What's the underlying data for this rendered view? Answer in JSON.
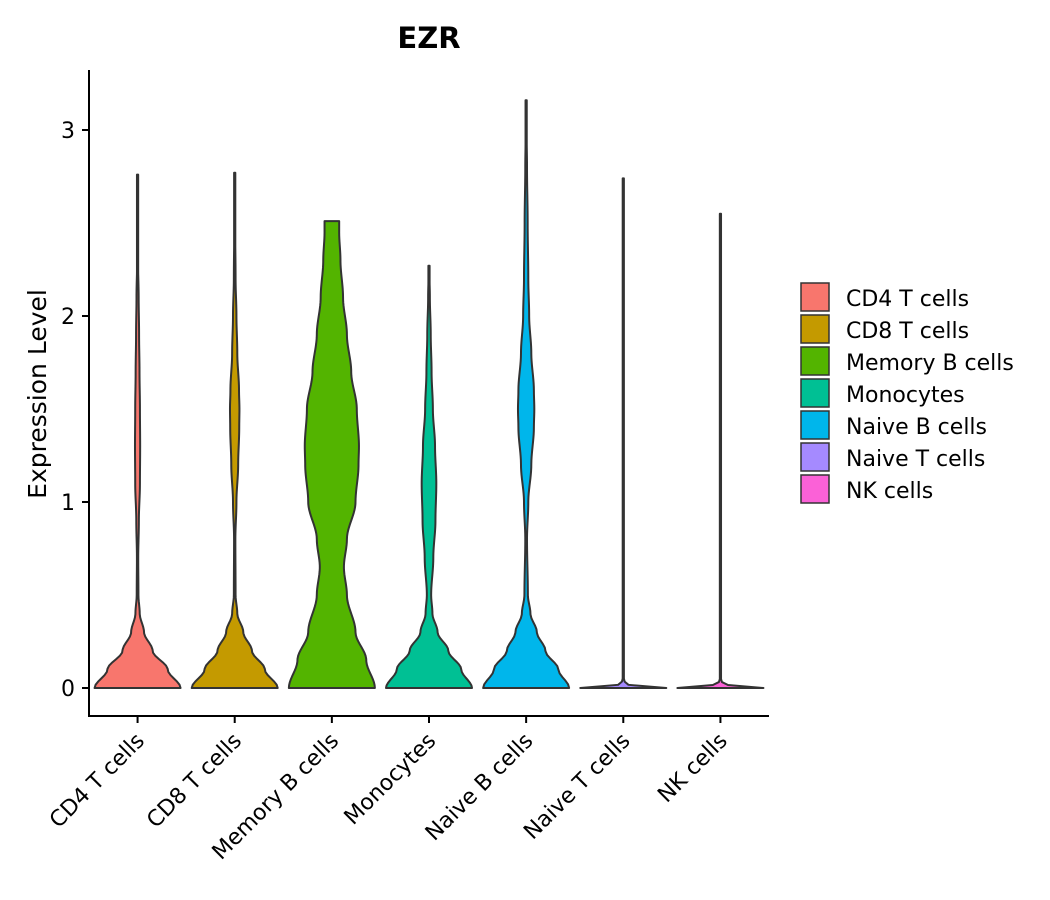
{
  "chart_data": {
    "type": "violin",
    "title": "EZR",
    "xlabel": "",
    "ylabel": "Expression Level",
    "ylim": [
      -0.15,
      3.3
    ],
    "yticks": [
      "0",
      "1",
      "2",
      "3"
    ],
    "categories": [
      "CD4 T cells",
      "CD8 T cells",
      "Memory B cells",
      "Monocytes",
      "Naive B cells",
      "Naive T cells",
      "NK cells"
    ],
    "colors": [
      "#F8766D",
      "#C49A00",
      "#53B400",
      "#00C094",
      "#00B6EB",
      "#A58AFF",
      "#FB61D7"
    ],
    "legend": {
      "placement": "right",
      "entries": [
        "CD4 T cells",
        "CD8 T cells",
        "Memory B cells",
        "Monocytes",
        "Naive B cells",
        "Naive T cells",
        "NK cells"
      ]
    },
    "series": [
      {
        "name": "CD4 T cells",
        "max": 2.76,
        "profile": [
          [
            0,
            1.0
          ],
          [
            0.1,
            0.7
          ],
          [
            0.2,
            0.35
          ],
          [
            0.3,
            0.15
          ],
          [
            0.4,
            0.05
          ],
          [
            0.5,
            0.02
          ],
          [
            0.7,
            0.015
          ],
          [
            0.9,
            0.03
          ],
          [
            1.1,
            0.055
          ],
          [
            1.3,
            0.06
          ],
          [
            1.5,
            0.055
          ],
          [
            1.7,
            0.045
          ],
          [
            1.9,
            0.035
          ],
          [
            2.1,
            0.025
          ],
          [
            2.3,
            0.01
          ],
          [
            2.5,
            0.008
          ],
          [
            2.76,
            0.005
          ]
        ]
      },
      {
        "name": "CD8 T cells",
        "max": 2.77,
        "profile": [
          [
            0,
            1.0
          ],
          [
            0.1,
            0.7
          ],
          [
            0.2,
            0.4
          ],
          [
            0.3,
            0.2
          ],
          [
            0.4,
            0.06
          ],
          [
            0.5,
            0.02
          ],
          [
            0.8,
            0.015
          ],
          [
            1.0,
            0.04
          ],
          [
            1.2,
            0.08
          ],
          [
            1.4,
            0.105
          ],
          [
            1.5,
            0.11
          ],
          [
            1.6,
            0.1
          ],
          [
            1.8,
            0.06
          ],
          [
            2.0,
            0.04
          ],
          [
            2.2,
            0.02
          ],
          [
            2.5,
            0.01
          ],
          [
            2.77,
            0.005
          ]
        ]
      },
      {
        "name": "Memory B cells",
        "max": 2.51,
        "profile": [
          [
            0,
            1.0
          ],
          [
            0.15,
            0.8
          ],
          [
            0.3,
            0.55
          ],
          [
            0.5,
            0.35
          ],
          [
            0.65,
            0.28
          ],
          [
            0.8,
            0.35
          ],
          [
            1.0,
            0.55
          ],
          [
            1.2,
            0.62
          ],
          [
            1.3,
            0.63
          ],
          [
            1.5,
            0.58
          ],
          [
            1.7,
            0.45
          ],
          [
            1.9,
            0.35
          ],
          [
            2.1,
            0.26
          ],
          [
            2.3,
            0.2
          ],
          [
            2.45,
            0.17
          ],
          [
            2.51,
            0.17
          ]
        ]
      },
      {
        "name": "Monocytes",
        "max": 2.27,
        "profile": [
          [
            0,
            1.0
          ],
          [
            0.1,
            0.75
          ],
          [
            0.2,
            0.45
          ],
          [
            0.3,
            0.2
          ],
          [
            0.4,
            0.08
          ],
          [
            0.5,
            0.05
          ],
          [
            0.7,
            0.1
          ],
          [
            0.9,
            0.15
          ],
          [
            1.1,
            0.17
          ],
          [
            1.3,
            0.14
          ],
          [
            1.5,
            0.09
          ],
          [
            1.7,
            0.06
          ],
          [
            1.9,
            0.04
          ],
          [
            2.1,
            0.02
          ],
          [
            2.27,
            0.005
          ]
        ]
      },
      {
        "name": "Naive B cells",
        "max": 3.16,
        "profile": [
          [
            0,
            1.0
          ],
          [
            0.1,
            0.75
          ],
          [
            0.2,
            0.45
          ],
          [
            0.3,
            0.25
          ],
          [
            0.4,
            0.1
          ],
          [
            0.5,
            0.04
          ],
          [
            0.8,
            0.02
          ],
          [
            1.0,
            0.05
          ],
          [
            1.2,
            0.12
          ],
          [
            1.4,
            0.18
          ],
          [
            1.5,
            0.19
          ],
          [
            1.6,
            0.18
          ],
          [
            1.8,
            0.12
          ],
          [
            2.0,
            0.07
          ],
          [
            2.2,
            0.05
          ],
          [
            2.5,
            0.035
          ],
          [
            2.8,
            0.02
          ],
          [
            3.0,
            0.01
          ],
          [
            3.16,
            0.005
          ]
        ]
      },
      {
        "name": "Naive T cells",
        "max": 2.74,
        "profile": [
          [
            0,
            1.0
          ],
          [
            0.01,
            0.4
          ],
          [
            0.02,
            0.05
          ],
          [
            0.05,
            0.01
          ],
          [
            2.74,
            0.008
          ]
        ]
      },
      {
        "name": "NK cells",
        "max": 2.55,
        "profile": [
          [
            0,
            1.0
          ],
          [
            0.01,
            0.4
          ],
          [
            0.02,
            0.05
          ],
          [
            0.05,
            0.01
          ],
          [
            2.55,
            0.008
          ]
        ]
      }
    ]
  }
}
